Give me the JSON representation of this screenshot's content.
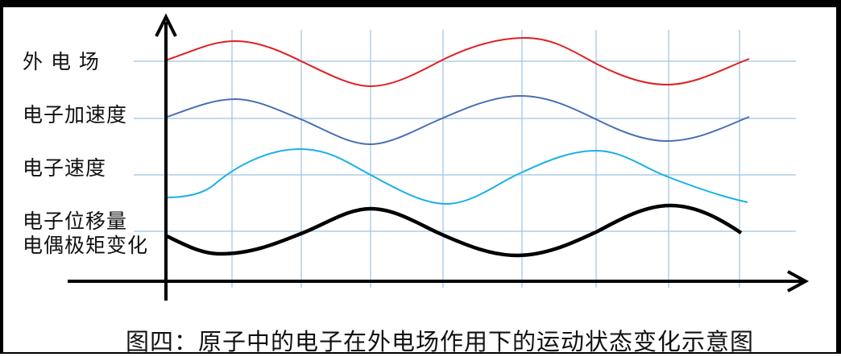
{
  "labels": {
    "field": "外 电 场",
    "acceleration": "电子加速度",
    "velocity": "电子速度",
    "displacement": "电子位移量",
    "dipole": "电偶极矩变化"
  },
  "caption": "图四：原子中的电子在外电场作用下的运动状态变化示意图",
  "colors": {
    "field": "#e02020",
    "acceleration": "#4a6fb5",
    "velocity": "#1ab0e8",
    "displacement": "#000000",
    "grid": "#9ec3e0",
    "axes": "#000000"
  }
}
